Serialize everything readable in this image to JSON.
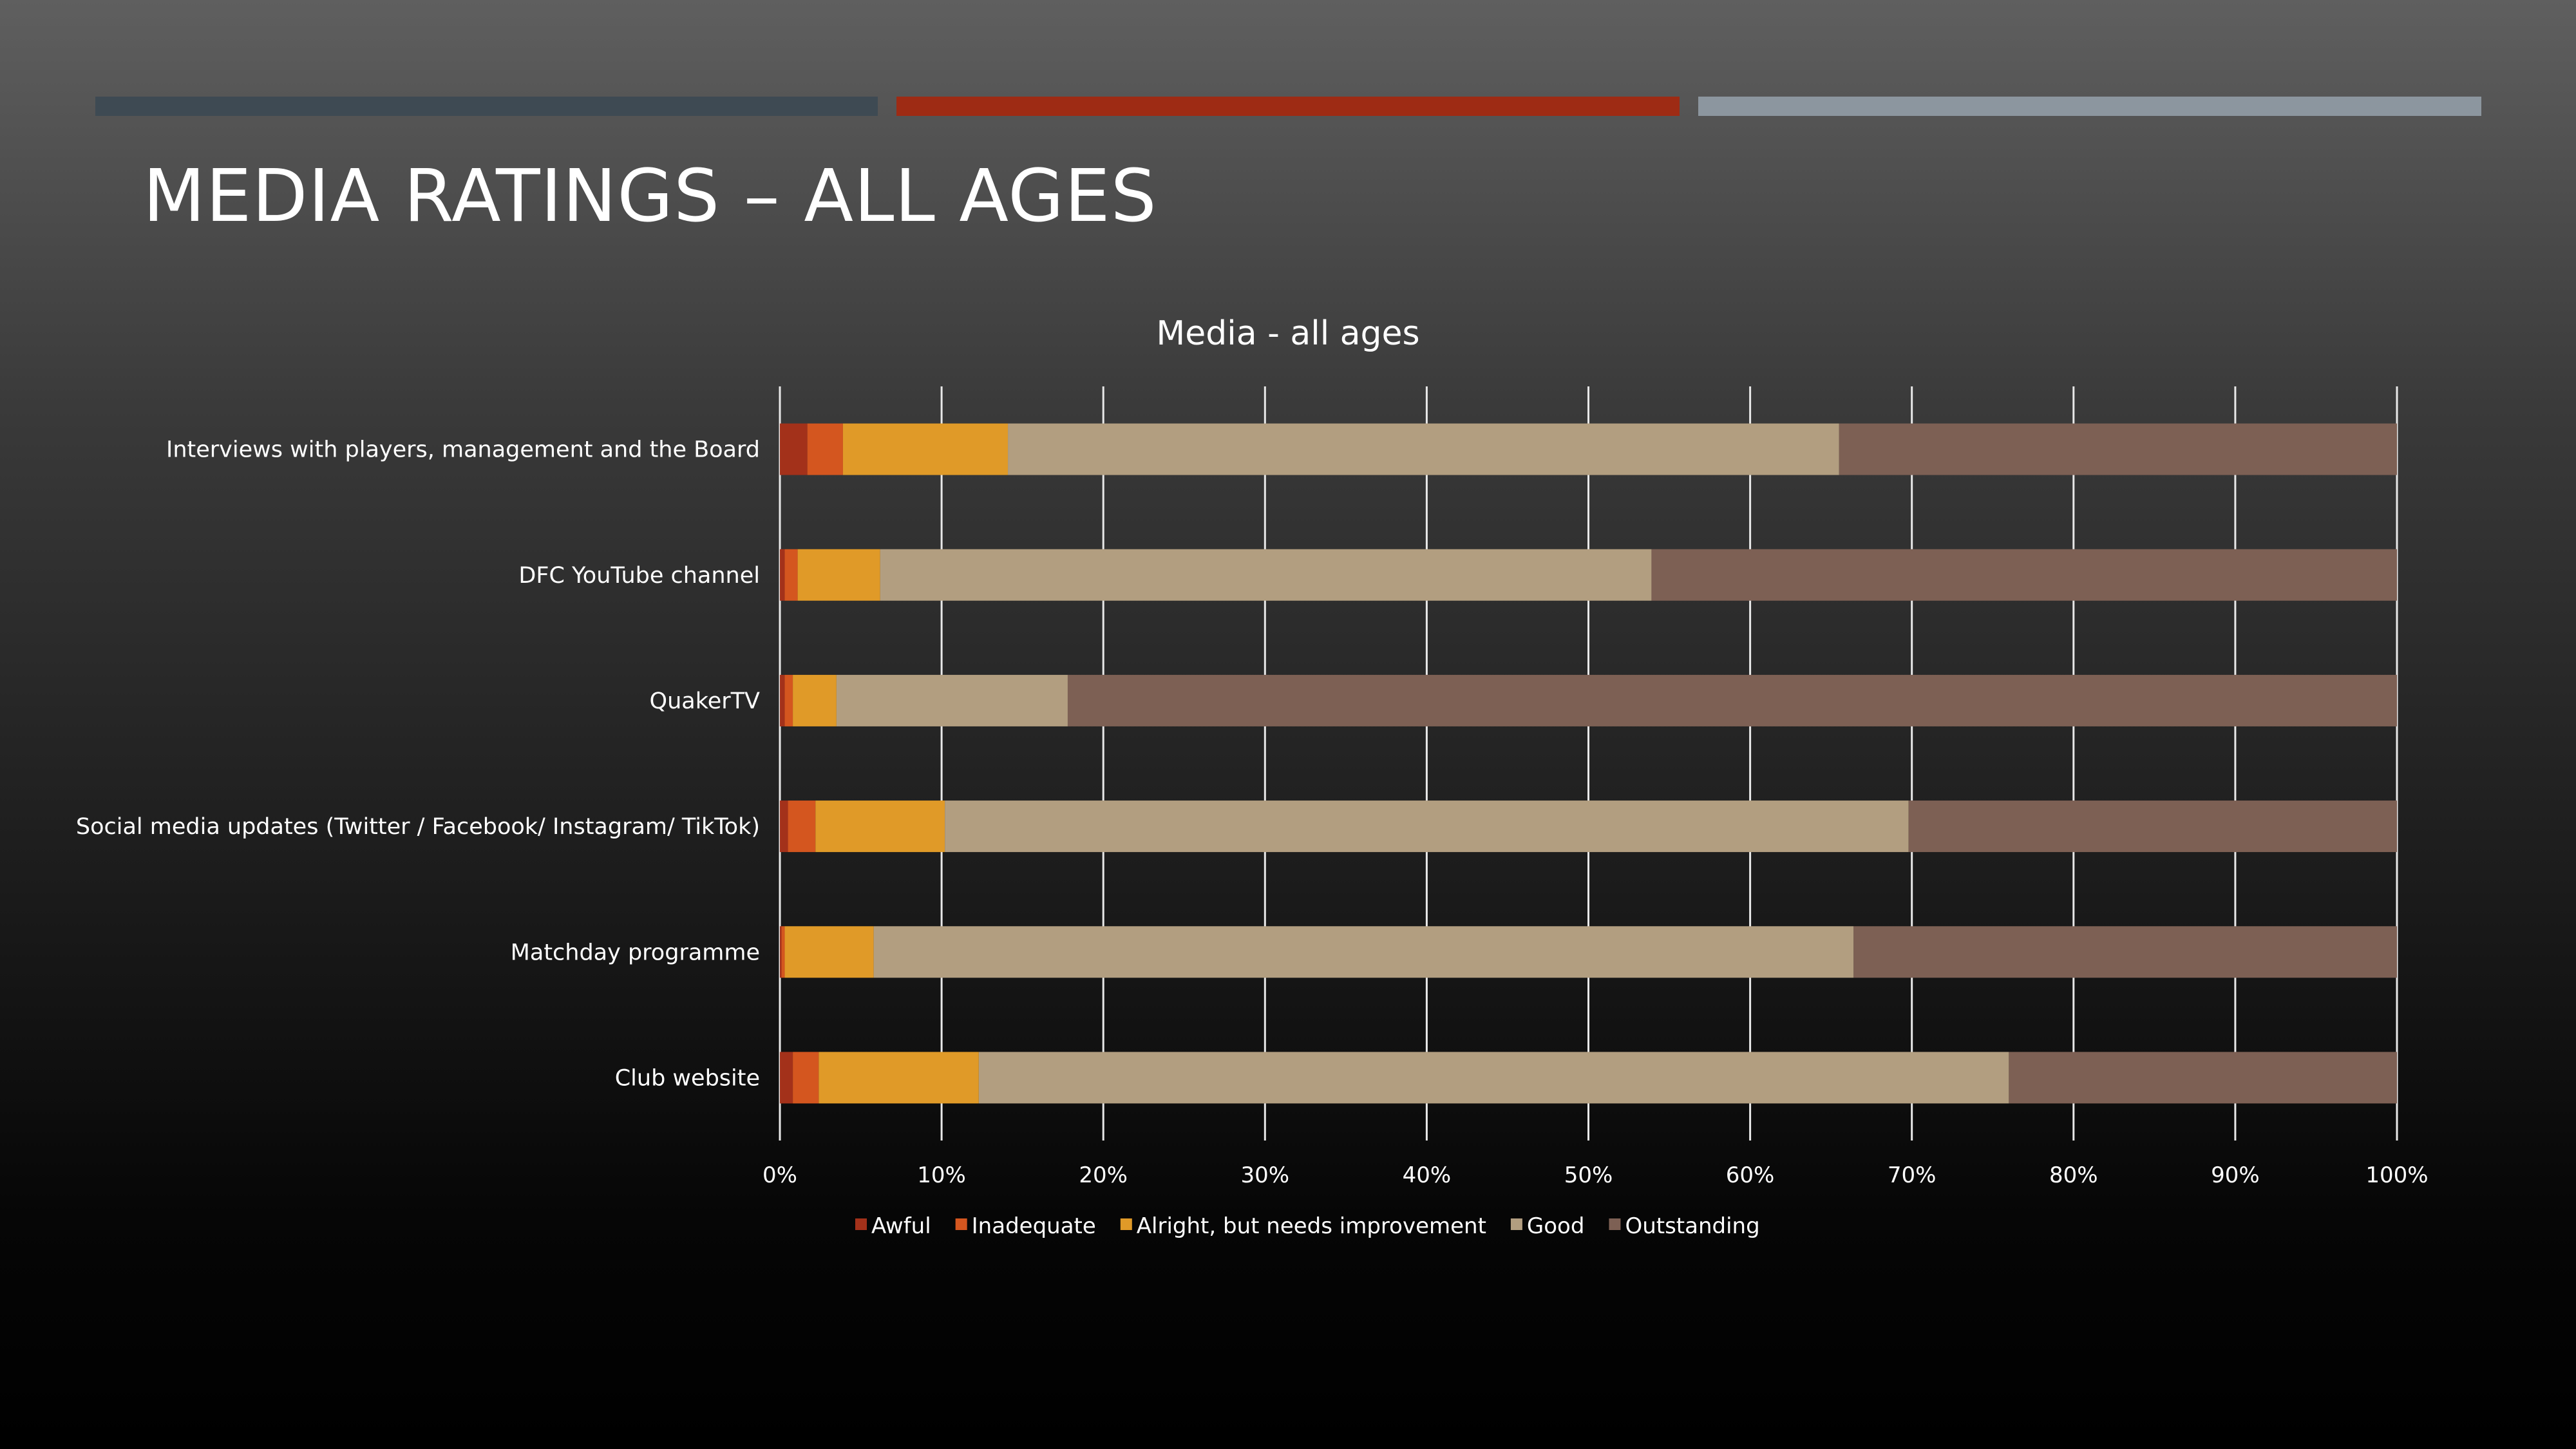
{
  "slide": {
    "title": "MEDIA RATINGS – ALL AGES",
    "accent_colors": [
      "#3e4a53",
      "#9e2b14",
      "#8c969f"
    ]
  },
  "chart_data": {
    "type": "bar",
    "orientation": "horizontal",
    "stacked": "percent",
    "title": "Media - all ages",
    "xlabel": "",
    "ylabel": "",
    "xlim": [
      0,
      100
    ],
    "x_ticks": [
      "0%",
      "10%",
      "20%",
      "30%",
      "40%",
      "50%",
      "60%",
      "70%",
      "80%",
      "90%",
      "100%"
    ],
    "grid": "vertical",
    "legend_position": "bottom",
    "categories": [
      "Interviews with players, management and the Board",
      "DFC YouTube channel",
      "QuakerTV",
      "Social media updates (Twitter / Facebook/ Instagram/ TikTok)",
      "Matchday programme",
      "Club website"
    ],
    "series": [
      {
        "name": "Awful",
        "color": "#a3311a",
        "values": [
          1.7,
          0.3,
          0.3,
          0.5,
          0.1,
          0.8
        ]
      },
      {
        "name": "Inadequate",
        "color": "#d4561f",
        "values": [
          2.2,
          0.8,
          0.5,
          1.7,
          0.2,
          1.6
        ]
      },
      {
        "name": "Alright, but needs improvement",
        "color": "#e09a28",
        "values": [
          10.2,
          5.1,
          2.7,
          8.0,
          5.5,
          9.9
        ]
      },
      {
        "name": "Good",
        "color": "#b29e80",
        "values": [
          51.4,
          47.7,
          14.3,
          59.6,
          60.6,
          63.7
        ]
      },
      {
        "name": "Outstanding",
        "color": "#7d6054",
        "values": [
          34.5,
          46.1,
          82.2,
          30.2,
          33.6,
          24.0
        ]
      }
    ]
  }
}
